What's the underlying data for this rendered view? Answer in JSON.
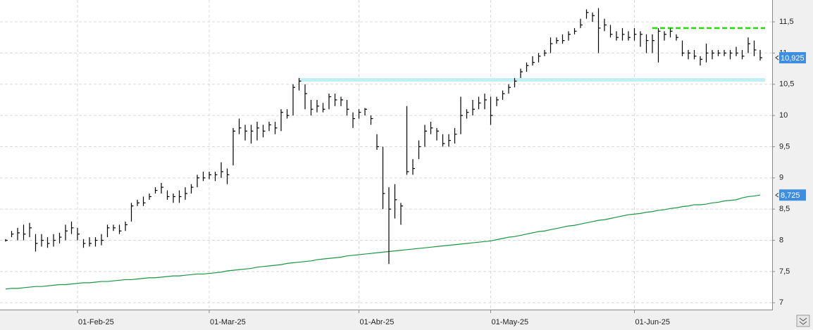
{
  "chart_data": {
    "type": "ohlc",
    "ylim": [
      6.89,
      11.85
    ],
    "yticks": [
      7,
      {
        "value": 7.5,
        "label": "7,5"
      },
      8,
      {
        "value": 8.5,
        "label": "8,5"
      },
      9,
      {
        "value": 9.5,
        "label": "9,5"
      },
      10,
      {
        "value": 10.5,
        "label": "10,5"
      },
      11,
      {
        "value": 11.5,
        "label": "11,5"
      }
    ],
    "grid": true,
    "bar_color": "#000000",
    "categories": [
      null,
      null,
      null,
      null,
      null,
      null,
      null,
      null,
      null,
      null,
      null,
      null,
      "01-Feb-25",
      null,
      null,
      null,
      null,
      null,
      null,
      null,
      null,
      null,
      null,
      null,
      null,
      null,
      null,
      null,
      null,
      null,
      null,
      null,
      null,
      null,
      "01-Mar-25",
      null,
      null,
      null,
      null,
      null,
      null,
      null,
      null,
      null,
      null,
      null,
      null,
      null,
      null,
      null,
      null,
      null,
      null,
      null,
      null,
      null,
      null,
      null,
      null,
      "01-Abr-25",
      null,
      null,
      null,
      null,
      null,
      null,
      null,
      null,
      null,
      null,
      null,
      null,
      null,
      null,
      null,
      null,
      null,
      null,
      null,
      null,
      null,
      "01-May-25",
      null,
      null,
      null,
      null,
      null,
      null,
      null,
      null,
      null,
      null,
      null,
      null,
      null,
      null,
      null,
      null,
      null,
      null,
      null,
      null,
      null,
      null,
      null,
      "01-Jun-25",
      null,
      null,
      null,
      null,
      null,
      null,
      null,
      null,
      null,
      null,
      null,
      null,
      null,
      null,
      null,
      null,
      null,
      null,
      null,
      null,
      null
    ],
    "close": [
      8.0,
      8.1,
      8.12,
      8.1,
      8.2,
      7.95,
      8.0,
      7.95,
      8.0,
      8.05,
      8.15,
      8.2,
      8.1,
      7.95,
      7.95,
      8.0,
      8.0,
      8.2,
      8.2,
      8.15,
      8.25,
      8.55,
      8.6,
      8.6,
      8.7,
      8.8,
      8.85,
      8.7,
      8.7,
      8.7,
      8.75,
      8.85,
      9.0,
      9.0,
      9.05,
      9.05,
      9.1,
      9.05,
      9.75,
      9.8,
      9.75,
      9.75,
      9.8,
      9.75,
      9.85,
      9.8,
      10.05,
      10.0,
      10.45,
      10.55,
      10.35,
      10.1,
      10.15,
      10.1,
      10.3,
      10.25,
      10.25,
      10.1,
      9.95,
      10.05,
      10.1,
      9.95,
      9.5,
      8.75,
      8.5,
      8.65,
      8.55,
      9.1,
      9.15,
      9.5,
      9.75,
      9.8,
      9.75,
      9.55,
      9.6,
      9.7,
      10.0,
      10.05,
      10.1,
      10.2,
      10.25,
      10.0,
      10.25,
      10.35,
      10.45,
      10.55,
      10.7,
      10.8,
      10.85,
      10.95,
      11.0,
      11.15,
      11.2,
      11.2,
      11.3,
      11.35,
      11.45,
      11.65,
      11.6,
      11.4,
      11.45,
      11.3,
      11.25,
      11.3,
      11.25,
      11.3,
      11.3,
      11.2,
      11.2,
      11.35,
      11.3,
      11.35,
      11.25,
      11.0,
      11.0,
      10.95,
      10.9,
      11.0,
      11.0,
      11.0,
      11.0,
      11.0,
      11.0,
      10.95,
      11.15,
      11.05,
      10.925
    ],
    "high": [
      8.02,
      8.15,
      8.2,
      8.25,
      8.28,
      8.1,
      8.1,
      8.05,
      8.1,
      8.12,
      8.25,
      8.3,
      8.2,
      8.02,
      8.05,
      8.05,
      8.1,
      8.25,
      8.25,
      8.25,
      8.3,
      8.6,
      8.65,
      8.7,
      8.75,
      8.85,
      8.92,
      8.8,
      8.75,
      8.8,
      8.85,
      8.9,
      9.05,
      9.1,
      9.1,
      9.1,
      9.25,
      9.15,
      9.8,
      9.95,
      9.85,
      9.85,
      9.9,
      9.85,
      9.9,
      9.9,
      10.1,
      10.1,
      10.5,
      10.6,
      10.5,
      10.25,
      10.25,
      10.2,
      10.35,
      10.35,
      10.3,
      10.25,
      10.05,
      10.1,
      10.12,
      10.0,
      9.7,
      9.5,
      8.85,
      8.9,
      8.6,
      10.15,
      9.3,
      9.6,
      9.85,
      9.9,
      9.8,
      9.7,
      9.7,
      9.8,
      10.3,
      10.1,
      10.25,
      10.3,
      10.35,
      10.3,
      10.3,
      10.4,
      10.5,
      10.6,
      10.75,
      10.85,
      10.95,
      11.0,
      11.05,
      11.25,
      11.25,
      11.3,
      11.35,
      11.4,
      11.55,
      11.7,
      11.65,
      11.72,
      11.55,
      11.45,
      11.35,
      11.4,
      11.35,
      11.4,
      11.35,
      11.3,
      11.3,
      11.4,
      11.35,
      11.4,
      11.3,
      11.2,
      11.05,
      11.05,
      10.95,
      11.15,
      11.05,
      11.05,
      11.05,
      11.05,
      11.1,
      11.05,
      11.25,
      11.2,
      11.05
    ],
    "low": [
      7.98,
      8.05,
      8.0,
      8.0,
      8.05,
      7.82,
      7.9,
      7.88,
      7.9,
      7.95,
      8.0,
      8.1,
      8.0,
      7.88,
      7.9,
      7.9,
      7.92,
      8.05,
      8.15,
      8.1,
      8.15,
      8.3,
      8.55,
      8.55,
      8.65,
      8.75,
      8.75,
      8.65,
      8.6,
      8.6,
      8.65,
      8.75,
      8.85,
      8.95,
      8.98,
      8.95,
      9.0,
      8.9,
      9.2,
      9.7,
      9.6,
      9.55,
      9.6,
      9.65,
      9.75,
      9.7,
      9.75,
      9.95,
      10.0,
      10.4,
      10.1,
      10.0,
      10.05,
      10.05,
      10.1,
      10.15,
      10.15,
      10.0,
      9.8,
      9.95,
      10.0,
      9.85,
      9.45,
      8.5,
      7.62,
      8.35,
      8.25,
      9.05,
      9.05,
      9.3,
      9.5,
      9.7,
      9.6,
      9.5,
      9.5,
      9.55,
      9.7,
      9.95,
      10.0,
      10.1,
      10.1,
      9.85,
      10.15,
      10.25,
      10.35,
      10.45,
      10.6,
      10.7,
      10.8,
      10.85,
      10.95,
      11.0,
      11.15,
      11.15,
      11.2,
      11.3,
      11.4,
      11.55,
      11.5,
      11.0,
      11.35,
      11.25,
      11.2,
      11.2,
      11.2,
      11.2,
      11.1,
      11.0,
      11.0,
      10.85,
      11.2,
      11.25,
      11.2,
      10.95,
      10.9,
      10.9,
      10.8,
      10.85,
      10.9,
      10.95,
      10.95,
      10.9,
      10.95,
      10.9,
      11.0,
      10.95,
      10.88
    ],
    "ma": {
      "color": "#1a9641",
      "values": [
        7.22,
        7.23,
        7.23,
        7.24,
        7.25,
        7.26,
        7.26,
        7.27,
        7.28,
        7.29,
        7.29,
        7.3,
        7.31,
        7.32,
        7.32,
        7.33,
        7.34,
        7.34,
        7.35,
        7.36,
        7.37,
        7.37,
        7.38,
        7.39,
        7.4,
        7.4,
        7.41,
        7.42,
        7.43,
        7.43,
        7.44,
        7.45,
        7.46,
        7.46,
        7.47,
        7.48,
        7.49,
        7.51,
        7.52,
        7.53,
        7.54,
        7.55,
        7.57,
        7.58,
        7.59,
        7.6,
        7.61,
        7.63,
        7.64,
        7.65,
        7.66,
        7.67,
        7.69,
        7.7,
        7.71,
        7.72,
        7.73,
        7.75,
        7.76,
        7.77,
        7.78,
        7.79,
        7.8,
        7.81,
        7.82,
        7.83,
        7.84,
        7.85,
        7.86,
        7.87,
        7.88,
        7.89,
        7.9,
        7.91,
        7.92,
        7.93,
        7.94,
        7.95,
        7.96,
        7.97,
        7.98,
        7.99,
        8.01,
        8.03,
        8.05,
        8.06,
        8.08,
        8.1,
        8.12,
        8.14,
        8.15,
        8.17,
        8.19,
        8.21,
        8.23,
        8.24,
        8.26,
        8.28,
        8.3,
        8.32,
        8.33,
        8.35,
        8.37,
        8.39,
        8.41,
        8.42,
        8.43,
        8.45,
        8.46,
        8.48,
        8.49,
        8.51,
        8.52,
        8.54,
        8.55,
        8.57,
        8.57,
        8.58,
        8.6,
        8.61,
        8.63,
        8.64,
        8.65,
        8.68,
        8.7,
        8.71,
        8.725
      ]
    },
    "resistance": {
      "value": 11.4,
      "color": "#22dd00"
    },
    "support": {
      "value": 10.57,
      "color": "#bff0f5"
    },
    "last_price": {
      "value": 10.925,
      "label": "10,925"
    },
    "ma_last": {
      "value": 8.725,
      "label": "8,725"
    }
  }
}
